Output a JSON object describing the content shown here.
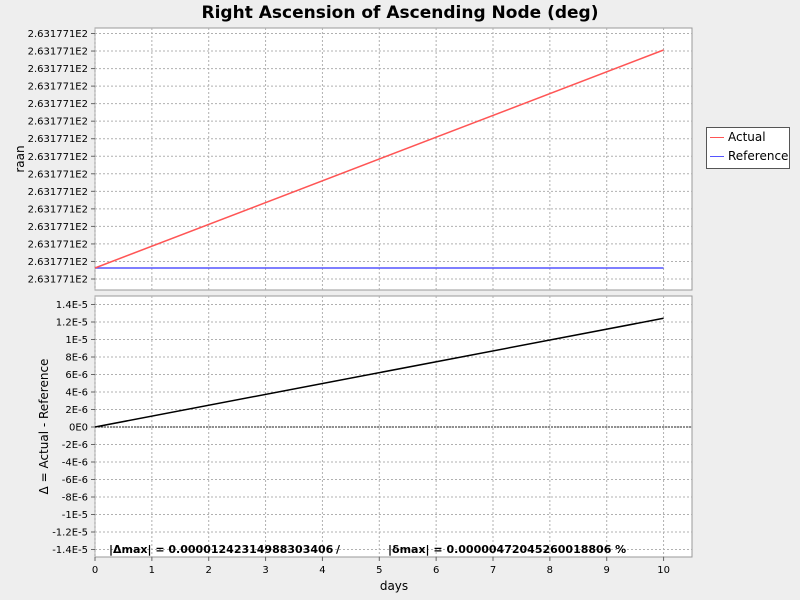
{
  "chart_data": [
    {
      "type": "line",
      "title": "Right Ascension of Ascending Node (deg)",
      "xlabel": "",
      "ylabel": "raan",
      "xlim": [
        0,
        10.5
      ],
      "ytick_labels": [
        "2.631771E2",
        "2.631771E2",
        "2.631771E2",
        "2.631771E2",
        "2.631771E2",
        "2.631771E2",
        "2.631771E2",
        "2.631771E2",
        "2.631771E2",
        "2.631771E2",
        "2.631771E2",
        "2.631771E2",
        "2.631771E2",
        "2.631771E2",
        "2.631771E2"
      ],
      "grid": true,
      "legend_position": "right",
      "series": [
        {
          "name": "Actual",
          "color": "#ff5555",
          "x": [
            0,
            10
          ],
          "y_relative_to_reference": [
            0,
            1.24231e-05
          ]
        },
        {
          "name": "Reference",
          "color": "#5555ff",
          "x": [
            0,
            10
          ],
          "y_relative_to_reference": [
            0,
            0
          ]
        }
      ]
    },
    {
      "type": "line",
      "title": "",
      "xlabel": "days",
      "ylabel": "Δ = Actual - Reference",
      "xlim": [
        0,
        10.5
      ],
      "ylim": [
        -1.5e-05,
        1.5e-05
      ],
      "xticks": [
        0,
        1,
        2,
        3,
        4,
        5,
        6,
        7,
        8,
        9,
        10
      ],
      "yticks": [
        1.4e-05,
        1.2e-05,
        1e-05,
        8e-06,
        6e-06,
        4e-06,
        2e-06,
        0,
        -2e-06,
        -4e-06,
        -6e-06,
        -8e-06,
        -1e-05,
        -1.2e-05,
        -1.4e-05
      ],
      "ytick_labels": [
        "1.4E-5",
        "1.2E-5",
        "1E-5",
        "8E-6",
        "6E-6",
        "4E-6",
        "2E-6",
        "0E0",
        "-2E-6",
        "-4E-6",
        "-6E-6",
        "-8E-6",
        "-1E-5",
        "-1.2E-5",
        "-1.4E-5"
      ],
      "grid": true,
      "series": [
        {
          "name": "",
          "color": "#000000",
          "x": [
            0,
            10
          ],
          "y": [
            0,
            1.24231e-05
          ]
        }
      ],
      "annotations": [
        "|Δmax| = 0.00001242314988303406",
        "/",
        "|δmax| = 0.00000472045260018806 %"
      ]
    }
  ]
}
